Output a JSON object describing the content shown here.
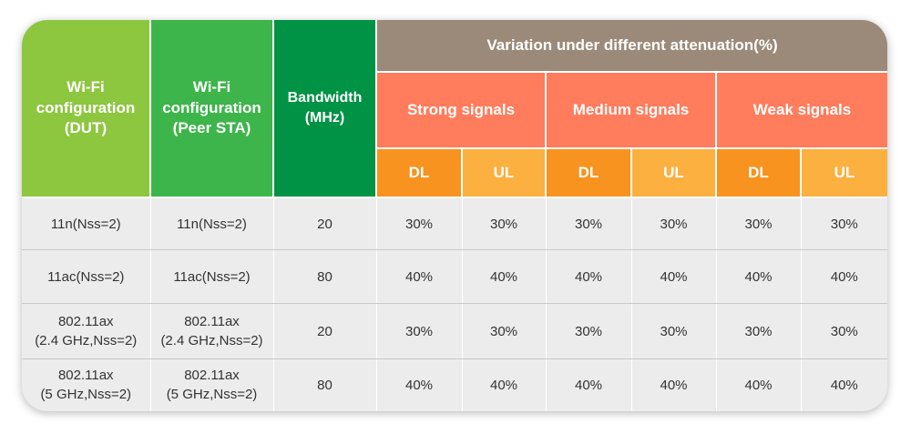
{
  "headers": {
    "dut": [
      "Wi-Fi",
      "configuration",
      "(DUT)"
    ],
    "peer": [
      "Wi-Fi",
      "configuration",
      "(Peer STA)"
    ],
    "bandwidth": [
      "Bandwidth",
      "(MHz)"
    ],
    "variation": "Variation under different attenuation(%)",
    "strong": "Strong signals",
    "medium": "Medium signals",
    "weak": "Weak signals",
    "dl": "DL",
    "ul": "UL"
  },
  "rows": [
    {
      "dut": [
        "11n(Nss=2)"
      ],
      "peer": [
        "11n(Nss=2)"
      ],
      "bw": "20",
      "values": [
        "30%",
        "30%",
        "30%",
        "30%",
        "30%",
        "30%"
      ]
    },
    {
      "dut": [
        "11ac(Nss=2)"
      ],
      "peer": [
        "11ac(Nss=2)"
      ],
      "bw": "80",
      "values": [
        "40%",
        "40%",
        "40%",
        "40%",
        "40%",
        "40%"
      ]
    },
    {
      "dut": [
        "802.11ax",
        "(2.4 GHz,Nss=2)"
      ],
      "peer": [
        "802.11ax",
        "(2.4 GHz,Nss=2)"
      ],
      "bw": "20",
      "values": [
        "30%",
        "30%",
        "30%",
        "30%",
        "30%",
        "30%"
      ]
    },
    {
      "dut": [
        "802.11ax",
        "(5 GHz,Nss=2)"
      ],
      "peer": [
        "802.11ax",
        "(5 GHz,Nss=2)"
      ],
      "bw": "80",
      "values": [
        "40%",
        "40%",
        "40%",
        "40%",
        "40%",
        "40%"
      ]
    }
  ],
  "colors": {
    "dut_header": "#8dc63f",
    "peer_header": "#3db54a",
    "bandwidth_header": "#009245",
    "variation_header": "#9b8a79",
    "signal_header": "#ff7c5c",
    "dl_header": "#f7931e",
    "ul_header": "#fbb040",
    "body_background": "#ececec"
  }
}
